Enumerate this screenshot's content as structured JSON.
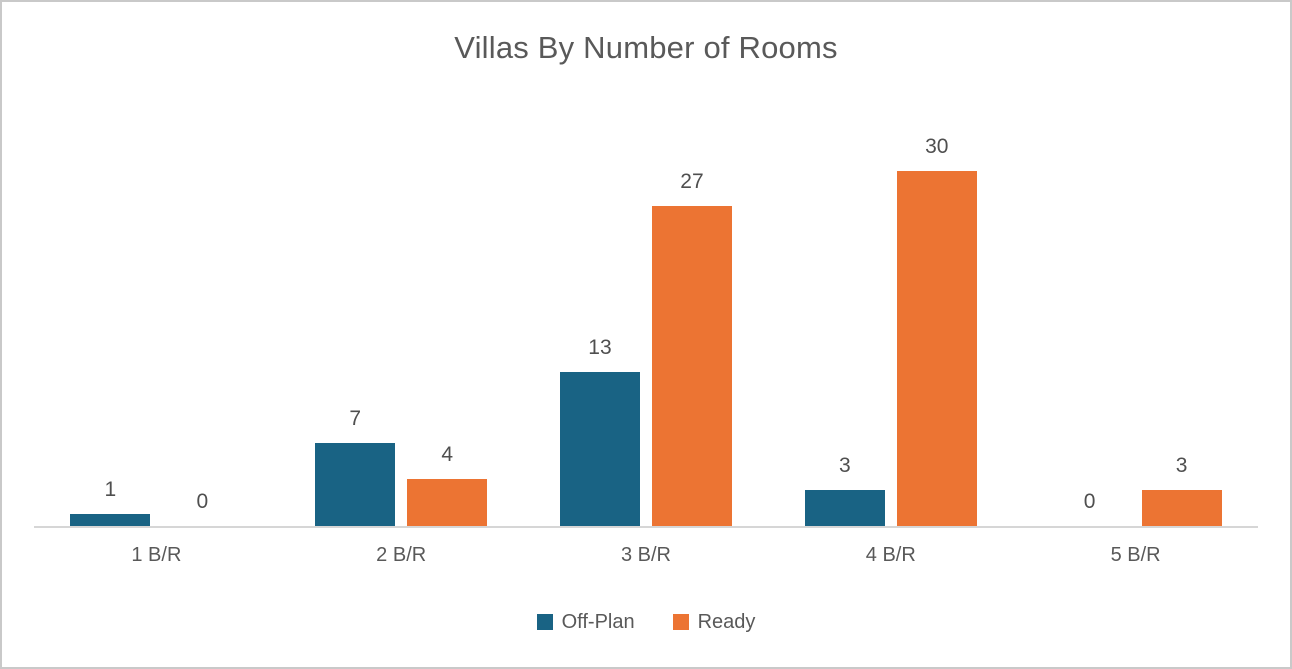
{
  "chart_data": {
    "type": "bar",
    "title": "Villas By Number of Rooms",
    "categories": [
      "1 B/R",
      "2 B/R",
      "3 B/R",
      "4 B/R",
      "5 B/R"
    ],
    "series": [
      {
        "name": "Off-Plan",
        "color": "#196384",
        "values": [
          1,
          7,
          13,
          3,
          0
        ]
      },
      {
        "name": "Ready",
        "color": "#EC7433",
        "values": [
          0,
          4,
          27,
          30,
          3
        ]
      }
    ],
    "value_axis": {
      "min": 0,
      "max": 30,
      "gridlines": false,
      "tick_labels_visible": false
    },
    "data_labels": true,
    "legend_position": "bottom"
  },
  "colors": {
    "title_text": "#595959",
    "value_label_text": "#4f4f4f",
    "category_label_text": "#595959",
    "axis_line": "#d6d6d6",
    "frame_border": "#c9c9c9",
    "background": "#ffffff"
  }
}
